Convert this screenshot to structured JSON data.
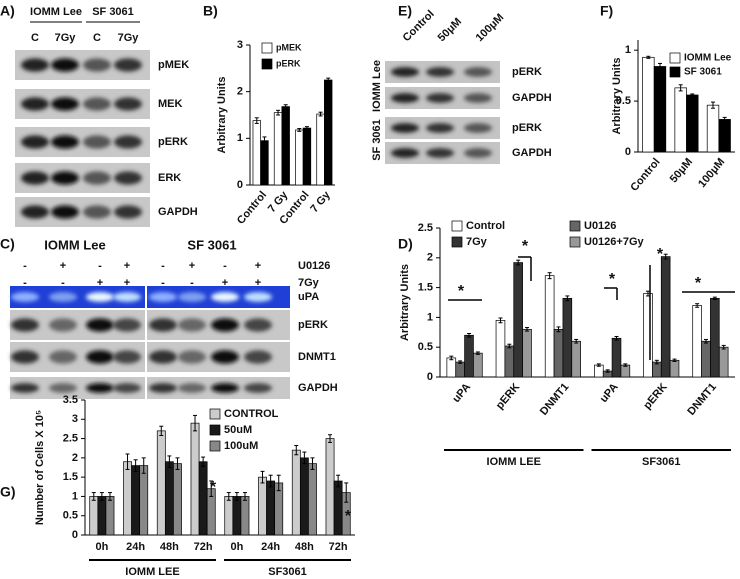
{
  "figure": {
    "panel_labels": [
      "A)",
      "B)",
      "C)",
      "D)",
      "E)",
      "F)",
      "G)"
    ],
    "blot_A": {
      "groups": [
        "IOMM Lee",
        "SF 3061"
      ],
      "lanes": [
        "C",
        "7Gy",
        "C",
        "7Gy"
      ],
      "rows": [
        "pMEK",
        "MEK",
        "pERK",
        "ERK",
        "GAPDH"
      ]
    },
    "blot_C": {
      "groups": [
        "IOMM Lee",
        "SF 3061"
      ],
      "conditions": [
        {
          "name": "U0126",
          "signs": [
            "-",
            "+",
            "-",
            "+",
            "-",
            "+",
            "-",
            "+"
          ]
        },
        {
          "name": "7Gy",
          "signs": [
            "-",
            "-",
            "+",
            "+",
            "-",
            "-",
            "+",
            "+"
          ]
        }
      ],
      "rows": [
        "uPA",
        "pERK",
        "DNMT1",
        "GAPDH"
      ]
    },
    "blot_E": {
      "lanes": [
        "Control",
        "50μM",
        "100μM"
      ],
      "groups": [
        "IOMM Lee",
        "SF 3061"
      ],
      "rows": [
        "pERK",
        "GAPDH",
        "pERK",
        "GAPDH"
      ]
    }
  },
  "chart_data": [
    {
      "type": "bar",
      "ylabel": "Arbitrary Units",
      "categories": [
        "Control",
        "7 Gy",
        "Control",
        "7 Gy"
      ],
      "series": [
        {
          "name": "pMEK",
          "color": "#ffffff",
          "values": [
            1.38,
            1.55,
            1.18,
            1.52
          ],
          "errors": [
            0.06,
            0.05,
            0.03,
            0.04
          ]
        },
        {
          "name": "pERK",
          "color": "#000000",
          "values": [
            0.95,
            1.68,
            1.22,
            2.25
          ],
          "errors": [
            0.08,
            0.04,
            0.03,
            0.04
          ]
        }
      ],
      "ylim": [
        0,
        3
      ],
      "yticks": [
        0,
        1,
        2,
        3
      ]
    },
    {
      "type": "bar",
      "ylabel": "Arbitrary Units",
      "categories": [
        "uPA",
        "pERK",
        "DNMT1",
        "uPA",
        "pERK",
        "DNMT1"
      ],
      "groups": [
        "IOMM LEE",
        "SF3061"
      ],
      "series": [
        {
          "name": "Control",
          "color": "#ffffff",
          "values": [
            0.32,
            0.95,
            1.7,
            0.2,
            1.4,
            1.2
          ],
          "errors": [
            0.03,
            0.04,
            0.05,
            0.02,
            0.04,
            0.03
          ]
        },
        {
          "name": "U0126",
          "color": "#666666",
          "values": [
            0.25,
            0.52,
            0.8,
            0.1,
            0.25,
            0.6
          ],
          "errors": [
            0.02,
            0.03,
            0.04,
            0.02,
            0.03,
            0.03
          ]
        },
        {
          "name": "7Gy",
          "color": "#333333",
          "values": [
            0.7,
            1.92,
            1.32,
            0.65,
            2.02,
            1.32
          ],
          "errors": [
            0.03,
            0.04,
            0.04,
            0.03,
            0.04,
            0.02
          ]
        },
        {
          "name": "U0126+7Gy",
          "color": "#999999",
          "values": [
            0.4,
            0.8,
            0.6,
            0.2,
            0.28,
            0.5
          ],
          "errors": [
            0.02,
            0.03,
            0.03,
            0.02,
            0.02,
            0.03
          ]
        }
      ],
      "annotations": [
        "*",
        "*",
        "*",
        "*",
        "*"
      ],
      "ylim": [
        0,
        2.5
      ],
      "yticks": [
        0,
        0.5,
        1,
        1.5,
        2,
        2.5
      ]
    },
    {
      "type": "bar",
      "ylabel": "Arbitrary Units",
      "categories": [
        "Control",
        "50μM",
        "100μM"
      ],
      "series": [
        {
          "name": "IOMM Lee",
          "color": "#ffffff",
          "values": [
            0.93,
            0.63,
            0.46
          ],
          "errors": [
            0.01,
            0.03,
            0.03
          ]
        },
        {
          "name": "SF 3061",
          "color": "#000000",
          "values": [
            0.84,
            0.56,
            0.32
          ],
          "errors": [
            0.03,
            0.01,
            0.02
          ]
        }
      ],
      "ylim": [
        0,
        1.1
      ],
      "yticks": [
        0,
        0.5,
        1
      ]
    },
    {
      "type": "bar",
      "ylabel": "Number of Cells X 10⁵",
      "categories": [
        "0h",
        "24h",
        "48h",
        "72h",
        "0h",
        "24h",
        "48h",
        "72h"
      ],
      "groups": [
        "IOMM LEE",
        "SF3061"
      ],
      "series": [
        {
          "name": "CONTROL",
          "color": "#cccccc",
          "values": [
            1.0,
            1.9,
            2.7,
            2.9,
            1.0,
            1.5,
            2.2,
            2.5
          ],
          "errors": [
            0.1,
            0.2,
            0.12,
            0.2,
            0.1,
            0.15,
            0.12,
            0.1
          ]
        },
        {
          "name": "50uM",
          "color": "#1a1a1a",
          "values": [
            1.0,
            1.8,
            1.9,
            1.9,
            1.0,
            1.4,
            2.0,
            1.4
          ],
          "errors": [
            0.1,
            0.15,
            0.15,
            0.12,
            0.1,
            0.15,
            0.15,
            0.15
          ]
        },
        {
          "name": "100uM",
          "color": "#888888",
          "values": [
            1.0,
            1.8,
            1.85,
            1.2,
            1.0,
            1.35,
            1.85,
            1.1
          ],
          "errors": [
            0.1,
            0.2,
            0.15,
            0.2,
            0.1,
            0.2,
            0.15,
            0.25
          ]
        }
      ],
      "annotations": [
        "*",
        "*"
      ],
      "ylim": [
        0,
        3.5
      ],
      "yticks": [
        0,
        0.5,
        1,
        1.5,
        2,
        2.5,
        3,
        3.5
      ]
    }
  ]
}
